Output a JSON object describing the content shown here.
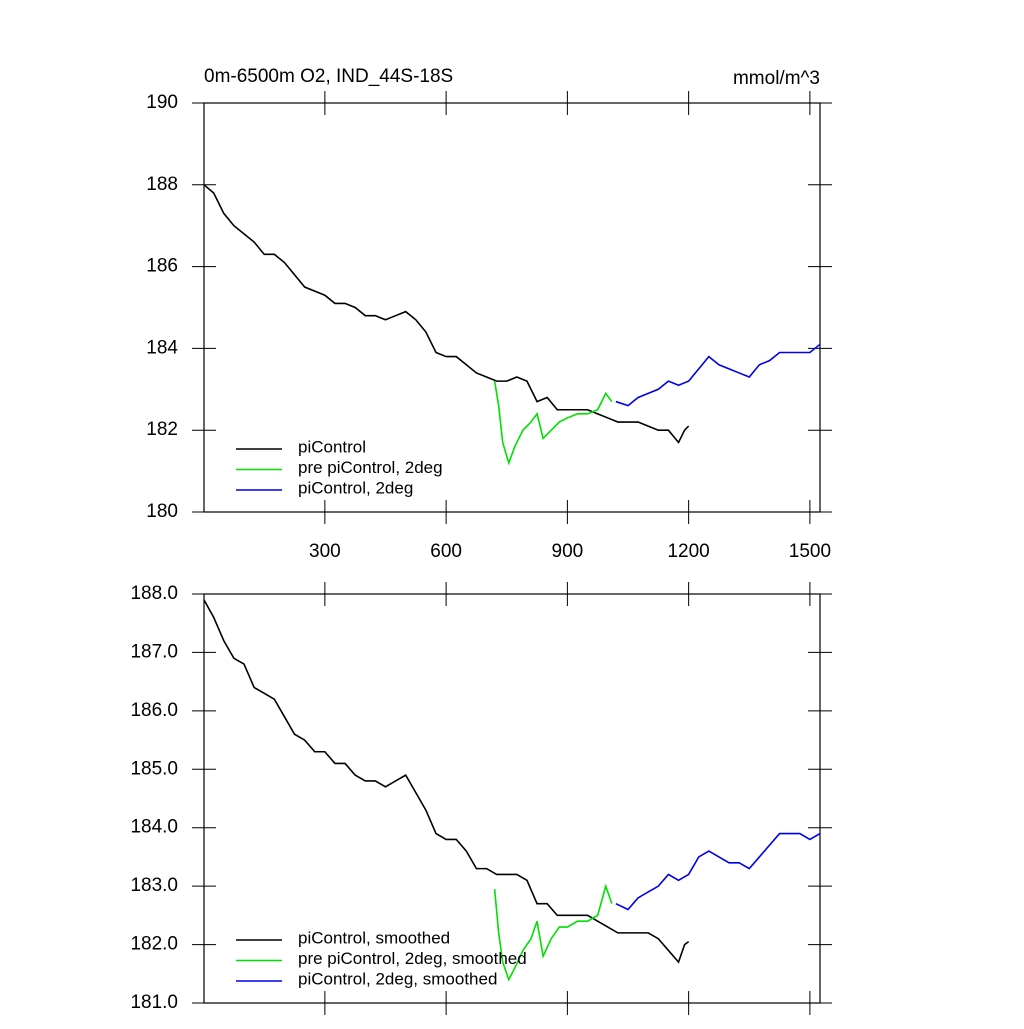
{
  "chart_data": [
    {
      "type": "line",
      "title": "0m-6500m O2, IND_44S-18S",
      "units_label": "mmol/m^3",
      "xlim": [
        1,
        1525
      ],
      "ylim": [
        180,
        190
      ],
      "xticks": [
        300,
        600,
        900,
        1200,
        1500
      ],
      "yticks": [
        180,
        182,
        184,
        186,
        188,
        190
      ],
      "show_xtick_labels": true,
      "legend": "lower left",
      "series": [
        {
          "name": "piControl",
          "color": "#000000",
          "x": [
            1,
            25,
            50,
            75,
            100,
            125,
            150,
            175,
            200,
            225,
            250,
            275,
            300,
            325,
            350,
            375,
            400,
            425,
            450,
            475,
            500,
            525,
            550,
            575,
            600,
            625,
            650,
            675,
            700,
            725,
            750,
            775,
            800,
            825,
            850,
            875,
            900,
            925,
            950,
            975,
            1000,
            1025,
            1050,
            1075,
            1100,
            1125,
            1150,
            1175,
            1190,
            1200
          ],
          "values": [
            188.0,
            187.8,
            187.3,
            187.0,
            186.8,
            186.6,
            186.3,
            186.3,
            186.1,
            185.8,
            185.5,
            185.4,
            185.3,
            185.1,
            185.1,
            185.0,
            184.8,
            184.8,
            184.7,
            184.8,
            184.9,
            184.7,
            184.4,
            183.9,
            183.8,
            183.8,
            183.6,
            183.4,
            183.3,
            183.2,
            183.2,
            183.3,
            183.2,
            182.7,
            182.8,
            182.5,
            182.5,
            182.5,
            182.5,
            182.4,
            182.3,
            182.2,
            182.2,
            182.2,
            182.1,
            182.0,
            182.0,
            181.7,
            182.0,
            182.1
          ]
        },
        {
          "name": "pre piControl, 2deg",
          "color": "#00e000",
          "x": [
            720,
            730,
            740,
            755,
            770,
            790,
            810,
            825,
            840,
            860,
            880,
            900,
            925,
            950,
            975,
            995,
            1010
          ],
          "values": [
            183.2,
            182.6,
            181.7,
            181.2,
            181.6,
            182.0,
            182.2,
            182.4,
            181.8,
            182.0,
            182.2,
            182.3,
            182.4,
            182.4,
            182.5,
            182.9,
            182.7
          ]
        },
        {
          "name": "piControl, 2deg",
          "color": "#0000ee",
          "x": [
            1020,
            1050,
            1075,
            1100,
            1125,
            1150,
            1175,
            1200,
            1225,
            1250,
            1275,
            1300,
            1325,
            1350,
            1375,
            1400,
            1425,
            1450,
            1475,
            1500,
            1525
          ],
          "values": [
            182.7,
            182.6,
            182.8,
            182.9,
            183.0,
            183.2,
            183.1,
            183.2,
            183.5,
            183.8,
            183.6,
            183.5,
            183.4,
            183.3,
            183.6,
            183.7,
            183.9,
            183.9,
            183.9,
            183.9,
            184.1
          ]
        }
      ]
    },
    {
      "type": "line",
      "xlim": [
        1,
        1525
      ],
      "ylim": [
        181,
        188
      ],
      "xticks": [
        300,
        600,
        900,
        1200,
        1500
      ],
      "yticks": [
        {
          "value": 181,
          "label": "181.0"
        },
        {
          "value": 182,
          "label": "182.0"
        },
        {
          "value": 183,
          "label": "183.0"
        },
        {
          "value": 184,
          "label": "184.0"
        },
        {
          "value": 185,
          "label": "185.0"
        },
        {
          "value": 186,
          "label": "186.0"
        },
        {
          "value": 187,
          "label": "187.0"
        },
        {
          "value": 188,
          "label": "188.0"
        }
      ],
      "show_xtick_labels": false,
      "legend": "lower left",
      "series": [
        {
          "name": "piControl, smoothed",
          "color": "#000000",
          "x": [
            1,
            25,
            50,
            75,
            100,
            125,
            150,
            175,
            200,
            225,
            250,
            275,
            300,
            325,
            350,
            375,
            400,
            425,
            450,
            475,
            500,
            525,
            550,
            575,
            600,
            625,
            650,
            675,
            700,
            725,
            750,
            775,
            800,
            825,
            850,
            875,
            900,
            925,
            950,
            975,
            1000,
            1025,
            1050,
            1075,
            1100,
            1125,
            1150,
            1175,
            1190,
            1200
          ],
          "values": [
            187.9,
            187.6,
            187.2,
            186.9,
            186.8,
            186.4,
            186.3,
            186.2,
            185.9,
            185.6,
            185.5,
            185.3,
            185.3,
            185.1,
            185.1,
            184.9,
            184.8,
            184.8,
            184.7,
            184.8,
            184.9,
            184.6,
            184.3,
            183.9,
            183.8,
            183.8,
            183.6,
            183.3,
            183.3,
            183.2,
            183.2,
            183.2,
            183.1,
            182.7,
            182.7,
            182.5,
            182.5,
            182.5,
            182.5,
            182.4,
            182.3,
            182.2,
            182.2,
            182.2,
            182.2,
            182.1,
            181.9,
            181.7,
            182.0,
            182.05
          ]
        },
        {
          "name": "pre piControl, 2deg, smoothed",
          "color": "#00e000",
          "x": [
            720,
            730,
            740,
            755,
            770,
            790,
            810,
            825,
            840,
            860,
            880,
            900,
            925,
            950,
            975,
            995,
            1010
          ],
          "values": [
            182.95,
            182.2,
            181.7,
            181.4,
            181.6,
            181.9,
            182.1,
            182.4,
            181.8,
            182.1,
            182.3,
            182.3,
            182.4,
            182.4,
            182.5,
            183.0,
            182.7
          ]
        },
        {
          "name": "piControl, 2deg, smoothed",
          "color": "#0000ee",
          "x": [
            1020,
            1050,
            1075,
            1100,
            1125,
            1150,
            1175,
            1200,
            1225,
            1250,
            1275,
            1300,
            1325,
            1350,
            1375,
            1400,
            1425,
            1450,
            1475,
            1500,
            1525
          ],
          "values": [
            182.7,
            182.6,
            182.8,
            182.9,
            183.0,
            183.2,
            183.1,
            183.2,
            183.5,
            183.6,
            183.5,
            183.4,
            183.4,
            183.3,
            183.5,
            183.7,
            183.9,
            183.9,
            183.9,
            183.8,
            183.9
          ]
        }
      ]
    }
  ]
}
